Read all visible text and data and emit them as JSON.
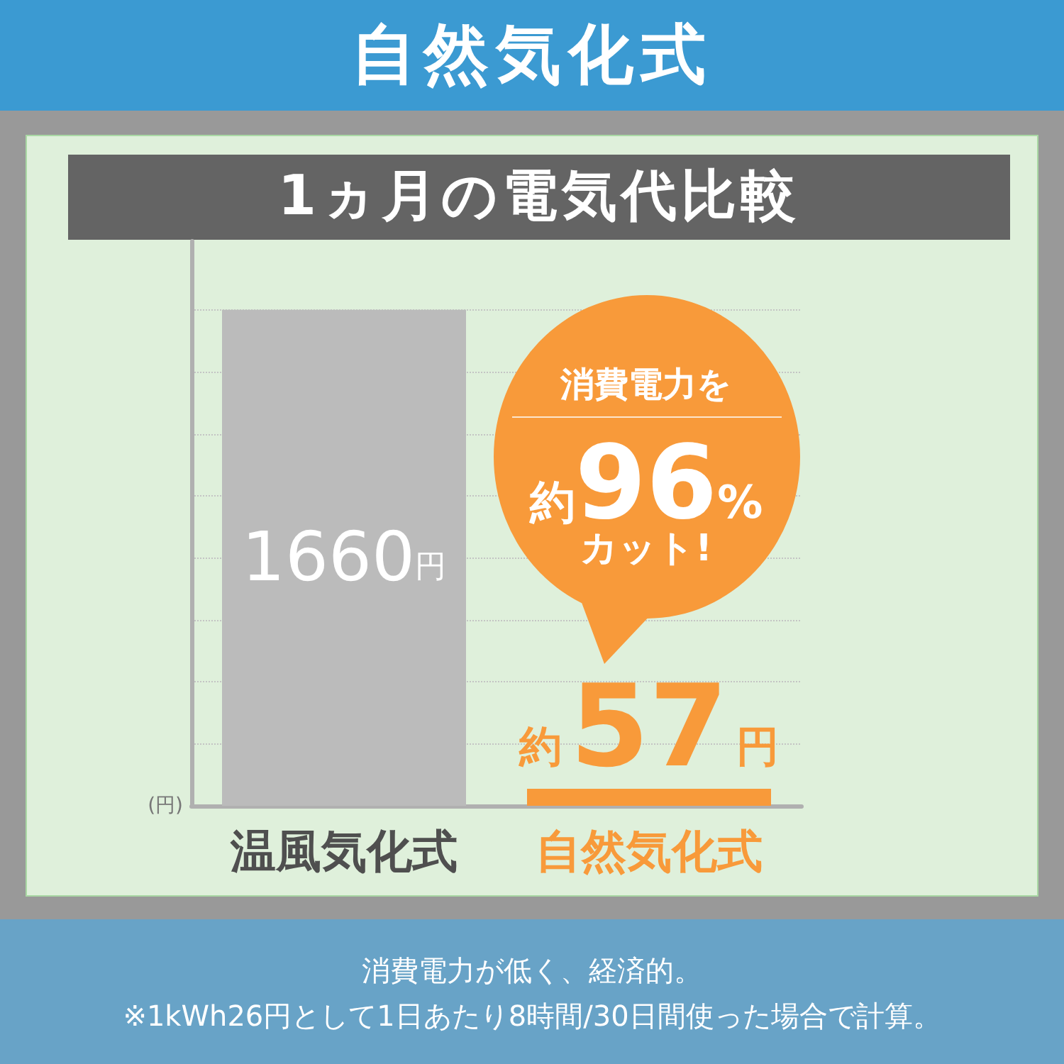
{
  "chart_data": {
    "type": "bar",
    "title": "自然気化式",
    "subtitle": "1ヵ月の電気代比較",
    "ylabel": "(円)",
    "categories": [
      "温風気化式",
      "自然気化式"
    ],
    "values": [
      1660,
      57
    ],
    "colors": [
      "#bbbbbb",
      "#f89a3a"
    ],
    "value_labels": [
      "1660円",
      "約57円"
    ],
    "ylim": [
      0,
      1890
    ],
    "yticks": [
      {
        "value": 210,
        "label": null
      },
      {
        "value": 415,
        "label": null
      },
      {
        "value": 620,
        "label": null
      },
      {
        "value": 830,
        "label": null
      },
      {
        "value": 1040,
        "label": null
      },
      {
        "value": 1245,
        "label": null
      },
      {
        "value": 1450,
        "label": null
      },
      {
        "value": 1660,
        "label": null
      }
    ],
    "grid": "y",
    "tick_labels": "x",
    "annotations": [
      "消費電力を",
      {
        "text": "約96%",
        "x": "自然気化式",
        "y": 57
      },
      "カット!",
      "消費電力が低く、経済的。",
      "※1kWh26円として1日あたり8時間/30日間使った場合で計算。"
    ]
  }
}
